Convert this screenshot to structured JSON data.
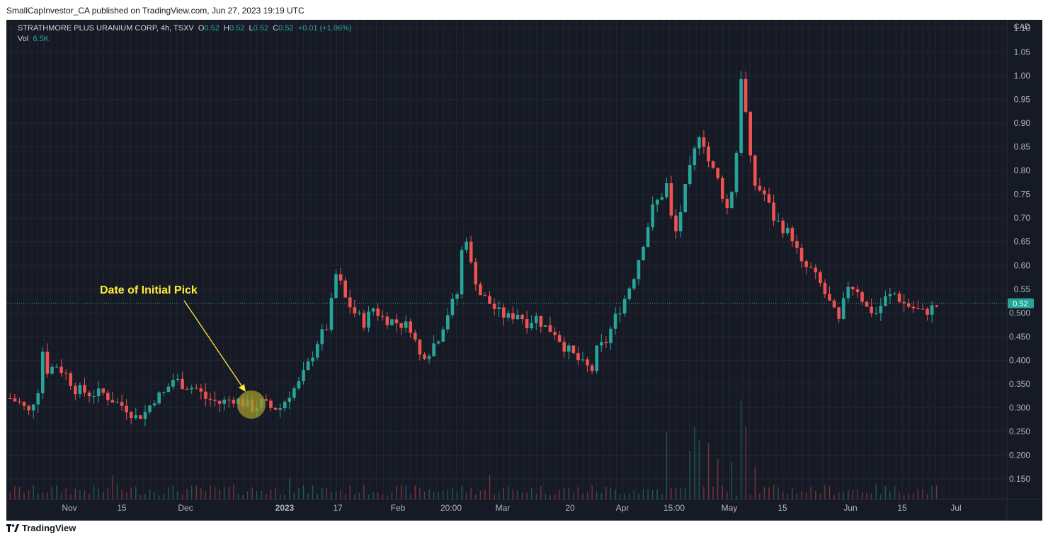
{
  "publisher_line": "SmallCapInvestor_CA published on TradingView.com, Jun 27, 2023 19:19 UTC",
  "footer_brand": "TradingView",
  "legend": {
    "symbol": "STRATHMORE PLUS URANIUM CORP, 4h, TSXV",
    "o_label": "O",
    "o": "0.52",
    "h_label": "H",
    "h": "0.52",
    "l_label": "L",
    "l": "0.52",
    "c_label": "C",
    "c": "0.52",
    "change": "+0.01 (+1.96%)",
    "vol_label": "Vol",
    "vol": "6.5K"
  },
  "colors": {
    "up": "#26a69a",
    "down": "#ef5350",
    "background": "#161a25",
    "grid": "#232632",
    "text": "#b2b5be",
    "annotation": "#ffeb3b",
    "highlight_circle": "#9e9a2a",
    "price_tag": "#26a69a"
  },
  "chart_data": {
    "type": "candlestick",
    "currency": "CAD",
    "ylim": [
      0.1,
      1.13
    ],
    "y_ticks": [
      "1.10",
      "1.05",
      "1.00",
      "0.95",
      "0.90",
      "0.85",
      "0.80",
      "0.75",
      "0.70",
      "0.65",
      "0.60",
      "0.55",
      "0.500",
      "0.450",
      "0.400",
      "0.350",
      "0.300",
      "0.250",
      "0.200",
      "0.150"
    ],
    "x_ticks": [
      "Nov",
      "15",
      "Dec",
      "2023",
      "17",
      "Feb",
      "20:00",
      "Mar",
      "20",
      "Apr",
      "15:00",
      "May",
      "15",
      "Jun",
      "15",
      "Jul"
    ],
    "last_price": "0.52",
    "annotation": "Date of Initial Pick",
    "price_path": [
      [
        0,
        0.32
      ],
      [
        2,
        0.31
      ],
      [
        4,
        0.29
      ],
      [
        6,
        0.34
      ],
      [
        7,
        0.42
      ],
      [
        8,
        0.38
      ],
      [
        10,
        0.39
      ],
      [
        12,
        0.37
      ],
      [
        14,
        0.34
      ],
      [
        17,
        0.33
      ],
      [
        20,
        0.33
      ],
      [
        23,
        0.31
      ],
      [
        25,
        0.3
      ],
      [
        27,
        0.28
      ],
      [
        29,
        0.29
      ],
      [
        31,
        0.32
      ],
      [
        33,
        0.33
      ],
      [
        35,
        0.36
      ],
      [
        37,
        0.35
      ],
      [
        40,
        0.34
      ],
      [
        42,
        0.32
      ],
      [
        45,
        0.31
      ],
      [
        48,
        0.32
      ],
      [
        50,
        0.31
      ],
      [
        52,
        0.3
      ],
      [
        54,
        0.31
      ],
      [
        56,
        0.3
      ],
      [
        58,
        0.3
      ],
      [
        60,
        0.33
      ],
      [
        62,
        0.35
      ],
      [
        64,
        0.39
      ],
      [
        66,
        0.44
      ],
      [
        68,
        0.47
      ],
      [
        69,
        0.52
      ],
      [
        70,
        0.58
      ],
      [
        71,
        0.56
      ],
      [
        72,
        0.53
      ],
      [
        74,
        0.5
      ],
      [
        76,
        0.48
      ],
      [
        78,
        0.51
      ],
      [
        80,
        0.49
      ],
      [
        83,
        0.48
      ],
      [
        86,
        0.47
      ],
      [
        87,
        0.44
      ],
      [
        88,
        0.41
      ],
      [
        90,
        0.42
      ],
      [
        92,
        0.45
      ],
      [
        94,
        0.5
      ],
      [
        96,
        0.54
      ],
      [
        97,
        0.63
      ],
      [
        98,
        0.66
      ],
      [
        99,
        0.6
      ],
      [
        101,
        0.54
      ],
      [
        103,
        0.52
      ],
      [
        105,
        0.5
      ],
      [
        107,
        0.49
      ],
      [
        109,
        0.5
      ],
      [
        111,
        0.48
      ],
      [
        113,
        0.49
      ],
      [
        115,
        0.47
      ],
      [
        117,
        0.46
      ],
      [
        119,
        0.43
      ],
      [
        121,
        0.41
      ],
      [
        123,
        0.39
      ],
      [
        125,
        0.38
      ],
      [
        126,
        0.42
      ],
      [
        128,
        0.44
      ],
      [
        130,
        0.49
      ],
      [
        132,
        0.53
      ],
      [
        134,
        0.58
      ],
      [
        136,
        0.65
      ],
      [
        138,
        0.72
      ],
      [
        140,
        0.75
      ],
      [
        141,
        0.77
      ],
      [
        142,
        0.7
      ],
      [
        143,
        0.67
      ],
      [
        145,
        0.76
      ],
      [
        147,
        0.84
      ],
      [
        148,
        0.88
      ],
      [
        149,
        0.86
      ],
      [
        150,
        0.82
      ],
      [
        152,
        0.78
      ],
      [
        154,
        0.72
      ],
      [
        155,
        0.76
      ],
      [
        156,
        0.84
      ],
      [
        157,
        1.0
      ],
      [
        158,
        0.92
      ],
      [
        159,
        0.82
      ],
      [
        160,
        0.77
      ],
      [
        162,
        0.75
      ],
      [
        164,
        0.7
      ],
      [
        166,
        0.68
      ],
      [
        168,
        0.66
      ],
      [
        170,
        0.6
      ],
      [
        172,
        0.59
      ],
      [
        174,
        0.56
      ],
      [
        176,
        0.52
      ],
      [
        178,
        0.48
      ],
      [
        180,
        0.56
      ],
      [
        182,
        0.55
      ],
      [
        184,
        0.51
      ],
      [
        186,
        0.5
      ],
      [
        188,
        0.53
      ],
      [
        190,
        0.54
      ],
      [
        192,
        0.52
      ],
      [
        194,
        0.51
      ],
      [
        196,
        0.5
      ],
      [
        198,
        0.51
      ],
      [
        200,
        0.52
      ]
    ],
    "volume_peaks": [
      [
        22,
        0.09
      ],
      [
        60,
        0.08
      ],
      [
        103,
        0.09
      ],
      [
        141,
        0.25
      ],
      [
        146,
        0.18
      ],
      [
        147,
        0.27
      ],
      [
        148,
        0.22
      ],
      [
        150,
        0.21
      ],
      [
        152,
        0.15
      ],
      [
        155,
        0.14
      ],
      [
        157,
        0.37
      ],
      [
        158,
        0.27
      ],
      [
        160,
        0.12
      ]
    ]
  }
}
